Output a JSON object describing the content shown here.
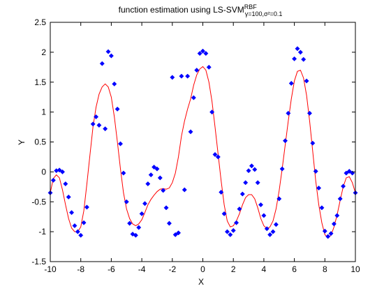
{
  "figure": {
    "background": "#ffffff"
  },
  "chart_data": {
    "type": "scatter",
    "title": {
      "main": "function estimation using  LS-SVM",
      "sup": "RBF",
      "sub": "γ=100,σ²=0.1"
    },
    "xlabel": "X",
    "ylabel": "Y",
    "xlim": [
      -10,
      10
    ],
    "ylim": [
      -1.5,
      2.5
    ],
    "xticks": [
      -10,
      -8,
      -6,
      -4,
      -2,
      0,
      2,
      4,
      6,
      8,
      10
    ],
    "yticks": [
      -1.5,
      -1,
      -0.5,
      0,
      0.5,
      1,
      1.5,
      2,
      2.5
    ],
    "xtick_labels": [
      "-10",
      "-8",
      "-6",
      "-4",
      "-2",
      "0",
      "2",
      "4",
      "6",
      "8",
      "10"
    ],
    "ytick_labels": [
      "-1.5",
      "-1",
      "-0.5",
      "0",
      "0.5",
      "1",
      "1.5",
      "2",
      "2.5"
    ],
    "grid": false,
    "legend": "none",
    "series": [
      {
        "kind": "scatter",
        "color": "#0000ff",
        "marker": "diamond",
        "points": [
          [
            -10.0,
            -0.35
          ],
          [
            -9.8,
            -0.14
          ],
          [
            -9.6,
            0.02
          ],
          [
            -9.4,
            0.03
          ],
          [
            -9.2,
            0.0
          ],
          [
            -9.0,
            -0.2
          ],
          [
            -8.8,
            -0.42
          ],
          [
            -8.6,
            -0.68
          ],
          [
            -8.4,
            -0.9
          ],
          [
            -8.2,
            -1.0
          ],
          [
            -8.0,
            -1.06
          ],
          [
            -7.8,
            -0.85
          ],
          [
            -7.6,
            -0.59
          ],
          [
            -7.2,
            0.8
          ],
          [
            -7.0,
            0.92
          ],
          [
            -6.8,
            0.78
          ],
          [
            -6.6,
            1.81
          ],
          [
            -6.4,
            0.72
          ],
          [
            -6.2,
            2.01
          ],
          [
            -6.0,
            1.94
          ],
          [
            -5.8,
            1.47
          ],
          [
            -5.6,
            1.05
          ],
          [
            -5.4,
            0.47
          ],
          [
            -5.2,
            -0.02
          ],
          [
            -5.0,
            -0.5
          ],
          [
            -4.8,
            -0.86
          ],
          [
            -4.6,
            -1.04
          ],
          [
            -4.4,
            -1.06
          ],
          [
            -4.2,
            -0.93
          ],
          [
            -4.0,
            -0.7
          ],
          [
            -3.8,
            -0.53
          ],
          [
            -3.6,
            -0.2
          ],
          [
            -3.4,
            -0.05
          ],
          [
            -3.2,
            0.08
          ],
          [
            -3.0,
            0.05
          ],
          [
            -2.8,
            -0.1
          ],
          [
            -2.6,
            -0.31
          ],
          [
            -2.4,
            -0.6
          ],
          [
            -2.2,
            -0.86
          ],
          [
            -2.0,
            1.58
          ],
          [
            -1.8,
            -1.05
          ],
          [
            -1.6,
            -1.02
          ],
          [
            -1.4,
            1.6
          ],
          [
            -1.2,
            -0.3
          ],
          [
            -1.0,
            1.6
          ],
          [
            -0.8,
            0.67
          ],
          [
            -0.6,
            1.24
          ],
          [
            -0.4,
            1.7
          ],
          [
            -0.2,
            1.98
          ],
          [
            0.0,
            2.02
          ],
          [
            0.2,
            1.98
          ],
          [
            0.4,
            1.75
          ],
          [
            0.6,
            1.0
          ],
          [
            0.8,
            0.29
          ],
          [
            1.0,
            0.25
          ],
          [
            1.2,
            -0.34
          ],
          [
            1.4,
            -0.7
          ],
          [
            1.6,
            -1.0
          ],
          [
            1.8,
            -1.05
          ],
          [
            2.0,
            -0.98
          ],
          [
            2.2,
            -0.85
          ],
          [
            2.4,
            -0.62
          ],
          [
            2.6,
            -0.37
          ],
          [
            2.8,
            -0.18
          ],
          [
            3.0,
            0.02
          ],
          [
            3.2,
            0.1
          ],
          [
            3.4,
            0.04
          ],
          [
            3.6,
            -0.18
          ],
          [
            3.8,
            -0.55
          ],
          [
            4.0,
            -0.73
          ],
          [
            4.2,
            -0.95
          ],
          [
            4.4,
            -1.05
          ],
          [
            4.6,
            -1.0
          ],
          [
            4.8,
            -0.88
          ],
          [
            5.0,
            -0.45
          ],
          [
            5.2,
            0.05
          ],
          [
            5.4,
            0.52
          ],
          [
            5.6,
            0.98
          ],
          [
            5.8,
            1.48
          ],
          [
            6.0,
            1.89
          ],
          [
            6.2,
            2.06
          ],
          [
            6.4,
            2.0
          ],
          [
            6.6,
            1.88
          ],
          [
            6.8,
            1.52
          ],
          [
            7.0,
            0.98
          ],
          [
            7.2,
            0.48
          ],
          [
            7.4,
            0.01
          ],
          [
            7.6,
            -0.27
          ],
          [
            7.8,
            -0.6
          ],
          [
            8.0,
            -0.99
          ],
          [
            8.2,
            -1.08
          ],
          [
            8.4,
            -1.03
          ],
          [
            8.6,
            -0.87
          ],
          [
            8.8,
            -0.73
          ],
          [
            9.0,
            -0.45
          ],
          [
            9.2,
            -0.24
          ],
          [
            9.4,
            -0.02
          ],
          [
            9.6,
            0.01
          ],
          [
            9.8,
            -0.02
          ],
          [
            10.0,
            -0.35
          ]
        ]
      },
      {
        "kind": "line",
        "color": "#ff0000",
        "points": [
          [
            -10.0,
            -0.35
          ],
          [
            -9.8,
            -0.11
          ],
          [
            -9.6,
            -0.05
          ],
          [
            -9.4,
            -0.1
          ],
          [
            -9.2,
            -0.3
          ],
          [
            -9.0,
            -0.55
          ],
          [
            -8.8,
            -0.78
          ],
          [
            -8.6,
            -0.94
          ],
          [
            -8.4,
            -1.0
          ],
          [
            -8.2,
            -1.0
          ],
          [
            -8.0,
            -0.92
          ],
          [
            -7.8,
            -0.65
          ],
          [
            -7.6,
            -0.2
          ],
          [
            -7.4,
            0.28
          ],
          [
            -7.2,
            0.75
          ],
          [
            -7.0,
            1.08
          ],
          [
            -6.8,
            1.3
          ],
          [
            -6.6,
            1.42
          ],
          [
            -6.4,
            1.47
          ],
          [
            -6.2,
            1.42
          ],
          [
            -6.0,
            1.25
          ],
          [
            -5.8,
            0.92
          ],
          [
            -5.6,
            0.5
          ],
          [
            -5.4,
            0.05
          ],
          [
            -5.2,
            -0.35
          ],
          [
            -5.0,
            -0.62
          ],
          [
            -4.8,
            -0.78
          ],
          [
            -4.6,
            -0.87
          ],
          [
            -4.4,
            -0.9
          ],
          [
            -4.2,
            -0.87
          ],
          [
            -4.0,
            -0.8
          ],
          [
            -3.8,
            -0.68
          ],
          [
            -3.6,
            -0.55
          ],
          [
            -3.4,
            -0.46
          ],
          [
            -3.2,
            -0.39
          ],
          [
            -3.0,
            -0.33
          ],
          [
            -2.8,
            -0.29
          ],
          [
            -2.6,
            -0.28
          ],
          [
            -2.4,
            -0.29
          ],
          [
            -2.2,
            -0.27
          ],
          [
            -2.0,
            -0.18
          ],
          [
            -1.8,
            -0.02
          ],
          [
            -1.6,
            0.25
          ],
          [
            -1.4,
            0.6
          ],
          [
            -1.2,
            0.85
          ],
          [
            -1.0,
            1.05
          ],
          [
            -0.8,
            1.22
          ],
          [
            -0.6,
            1.45
          ],
          [
            -0.4,
            1.62
          ],
          [
            -0.2,
            1.72
          ],
          [
            0.0,
            1.76
          ],
          [
            0.2,
            1.7
          ],
          [
            0.4,
            1.5
          ],
          [
            0.6,
            1.18
          ],
          [
            0.8,
            0.75
          ],
          [
            1.0,
            0.3
          ],
          [
            1.2,
            -0.15
          ],
          [
            1.4,
            -0.55
          ],
          [
            1.6,
            -0.82
          ],
          [
            1.8,
            -0.92
          ],
          [
            2.0,
            -0.9
          ],
          [
            2.2,
            -0.82
          ],
          [
            2.4,
            -0.7
          ],
          [
            2.6,
            -0.55
          ],
          [
            2.8,
            -0.43
          ],
          [
            3.0,
            -0.38
          ],
          [
            3.2,
            -0.38
          ],
          [
            3.4,
            -0.45
          ],
          [
            3.6,
            -0.6
          ],
          [
            3.8,
            -0.78
          ],
          [
            4.0,
            -0.9
          ],
          [
            4.2,
            -0.95
          ],
          [
            4.4,
            -0.92
          ],
          [
            4.6,
            -0.82
          ],
          [
            4.8,
            -0.62
          ],
          [
            5.0,
            -0.32
          ],
          [
            5.2,
            0.05
          ],
          [
            5.4,
            0.45
          ],
          [
            5.6,
            0.85
          ],
          [
            5.8,
            1.22
          ],
          [
            6.0,
            1.52
          ],
          [
            6.2,
            1.68
          ],
          [
            6.4,
            1.7
          ],
          [
            6.6,
            1.57
          ],
          [
            6.8,
            1.28
          ],
          [
            7.0,
            0.85
          ],
          [
            7.2,
            0.35
          ],
          [
            7.4,
            -0.15
          ],
          [
            7.6,
            -0.55
          ],
          [
            7.8,
            -0.85
          ],
          [
            8.0,
            -1.05
          ],
          [
            8.2,
            -1.1
          ],
          [
            8.4,
            -1.06
          ],
          [
            8.6,
            -0.92
          ],
          [
            8.8,
            -0.72
          ],
          [
            9.0,
            -0.48
          ],
          [
            9.2,
            -0.25
          ],
          [
            9.4,
            -0.1
          ],
          [
            9.6,
            -0.08
          ],
          [
            9.8,
            -0.18
          ],
          [
            10.0,
            -0.35
          ]
        ]
      }
    ]
  }
}
